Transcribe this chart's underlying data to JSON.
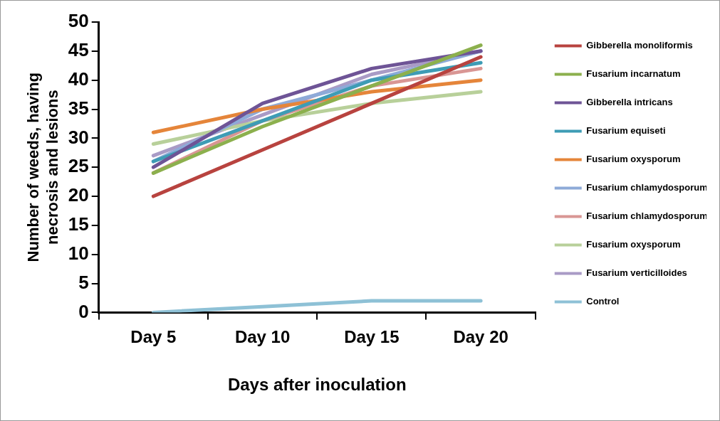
{
  "chart_data": {
    "type": "line",
    "xlabel": "Days after inoculation",
    "ylabel": "Number of weeds, having necrosis and lesions",
    "categories": [
      "Day 5",
      "Day 10",
      "Day 15",
      "Day 20"
    ],
    "ylim": [
      0,
      50
    ],
    "yticks": [
      0,
      5,
      10,
      15,
      20,
      25,
      30,
      35,
      40,
      45,
      50
    ],
    "grid": false,
    "legend": "right",
    "marker": "none",
    "line_style": "solid",
    "series": [
      {
        "name": "Gibberella monoliformis",
        "color": "#b8433f",
        "values": [
          20,
          28,
          36,
          44
        ]
      },
      {
        "name": "Fusarium incarnatum",
        "color": "#8cb04d",
        "values": [
          24,
          32,
          39,
          46
        ]
      },
      {
        "name": "Gibberella intricans",
        "color": "#6e5496",
        "values": [
          25,
          36,
          42,
          45
        ]
      },
      {
        "name": "Fusarium equiseti",
        "color": "#3e9cb5",
        "values": [
          26,
          33,
          40,
          43
        ]
      },
      {
        "name": "Fusarium oxysporum",
        "color": "#e5853a",
        "values": [
          31,
          35,
          38,
          40
        ]
      },
      {
        "name": "Fusarium chlamydosporum",
        "color": "#8eaad8",
        "values": [
          26,
          35,
          40,
          45
        ]
      },
      {
        "name": "Fusarium chlamydosporum",
        "color": "#d99694",
        "values": [
          24,
          33,
          39,
          42
        ]
      },
      {
        "name": "Fusarium oxysporum",
        "color": "#b8d09a",
        "values": [
          29,
          33,
          36,
          38
        ]
      },
      {
        "name": "Fusarium verticilloides",
        "color": "#a99bc6",
        "values": [
          27,
          34,
          41,
          45
        ]
      },
      {
        "name": "Control",
        "color": "#8ec1d6",
        "values": [
          0,
          1,
          2,
          2
        ]
      }
    ]
  }
}
